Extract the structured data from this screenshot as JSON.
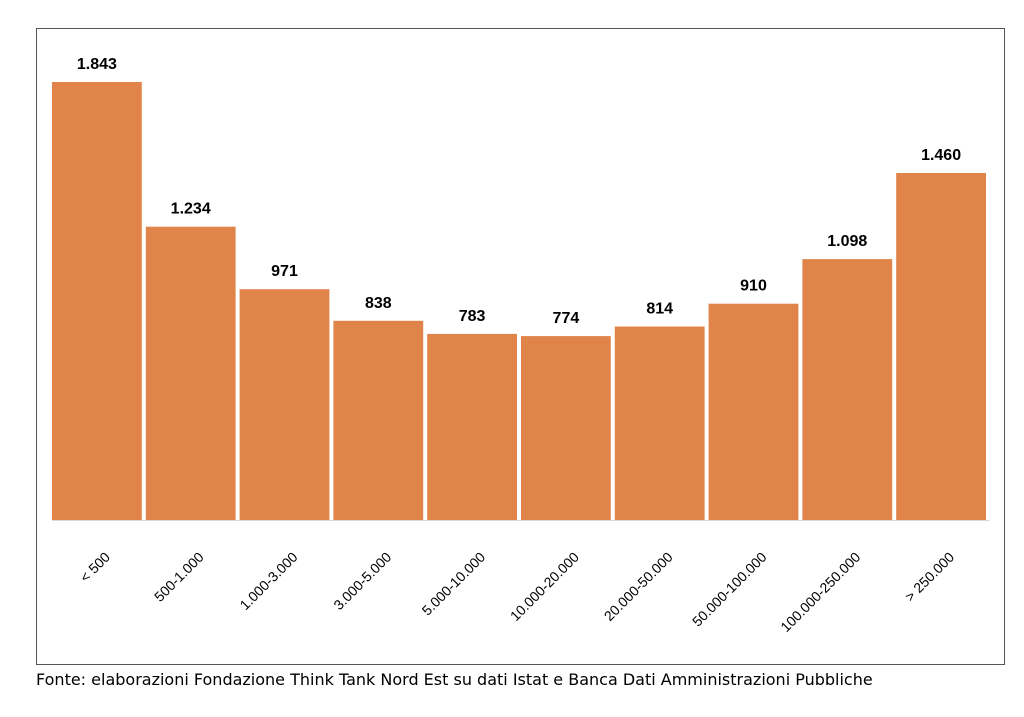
{
  "chart_data": {
    "type": "bar",
    "categories": [
      "< 500",
      "500-1.000",
      "1.000-3.000",
      "3.000-5.000",
      "5.000-10.000",
      "10.000-20.000",
      "20.000-50.000",
      "50.000-100.000",
      "100.000-250.000",
      "> 250.000"
    ],
    "values": [
      1843,
      1234,
      971,
      838,
      783,
      774,
      814,
      910,
      1098,
      1460
    ],
    "value_labels": [
      "1.843",
      "1.234",
      "971",
      "838",
      "783",
      "774",
      "814",
      "910",
      "1.098",
      "1.460"
    ],
    "ylim": [
      0,
      1843
    ],
    "bar_color": "#E0844A",
    "grid": false,
    "legend": "none"
  },
  "source_note": "Fonte: elaborazioni Fondazione Think Tank Nord Est su dati Istat e Banca Dati Amministrazioni Pubbliche"
}
